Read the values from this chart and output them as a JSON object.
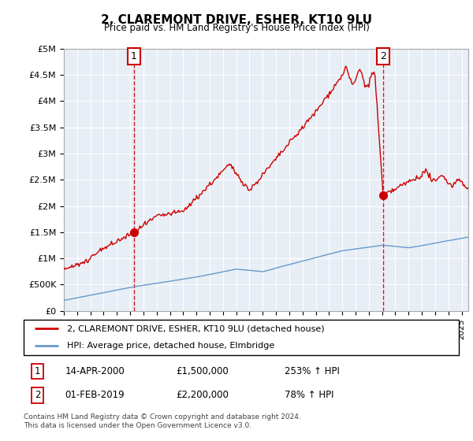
{
  "title": "2, CLAREMONT DRIVE, ESHER, KT10 9LU",
  "subtitle": "Price paid vs. HM Land Registry's House Price Index (HPI)",
  "legend_line1": "2, CLAREMONT DRIVE, ESHER, KT10 9LU (detached house)",
  "legend_line2": "HPI: Average price, detached house, Elmbridge",
  "annotation1_date": "14-APR-2000",
  "annotation1_price": "£1,500,000",
  "annotation1_hpi": "253% ↑ HPI",
  "annotation2_date": "01-FEB-2019",
  "annotation2_price": "£2,200,000",
  "annotation2_hpi": "78% ↑ HPI",
  "footnote": "Contains HM Land Registry data © Crown copyright and database right 2024.\nThis data is licensed under the Open Government Licence v3.0.",
  "line1_color": "#cc0000",
  "line2_color": "#6699cc",
  "vline_color": "#cc0000",
  "bg_color": "#e8eef5",
  "ylim": [
    0,
    5000000
  ],
  "yticks": [
    0,
    500000,
    1000000,
    1500000,
    2000000,
    2500000,
    3000000,
    3500000,
    4000000,
    4500000,
    5000000
  ],
  "ytick_labels": [
    "£0",
    "£500K",
    "£1M",
    "£1.5M",
    "£2M",
    "£2.5M",
    "£3M",
    "£3.5M",
    "£4M",
    "£4.5M",
    "£5M"
  ],
  "sale1_x": 2000.29,
  "sale1_y": 1500000,
  "sale2_x": 2019.08,
  "sale2_y": 2200000,
  "xmin": 1995.0,
  "xmax": 2025.5
}
